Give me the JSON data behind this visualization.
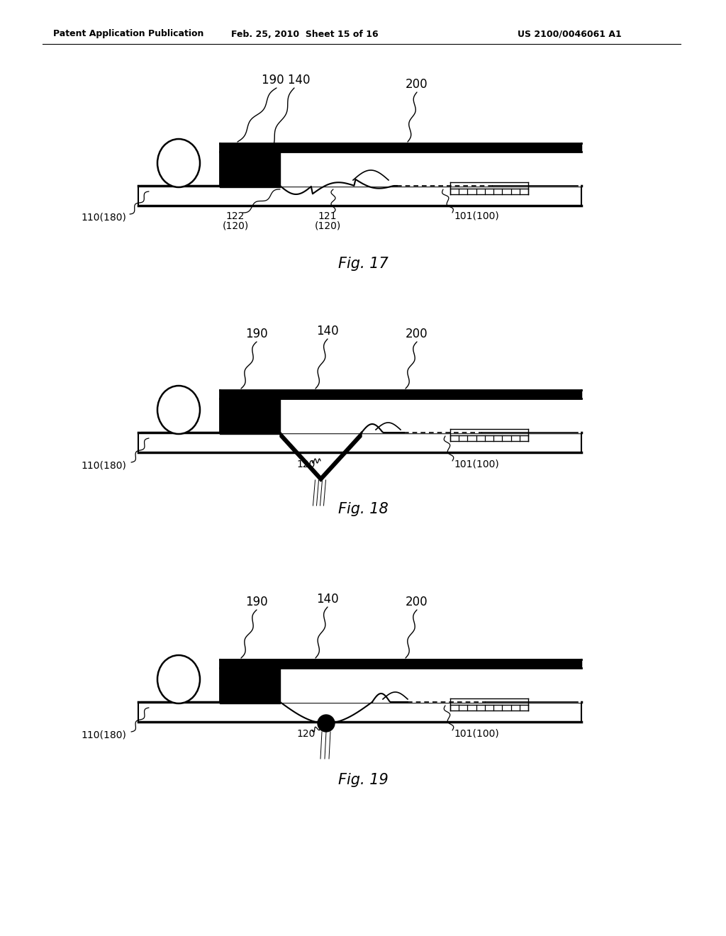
{
  "header_left": "Patent Application Publication",
  "header_mid": "Feb. 25, 2010  Sheet 15 of 16",
  "header_right": "US 2100/0046061 A1",
  "fig17_caption": "Fig. 17",
  "fig18_caption": "Fig. 18",
  "fig19_caption": "Fig. 19",
  "bg_color": "#ffffff",
  "lc": "#000000"
}
